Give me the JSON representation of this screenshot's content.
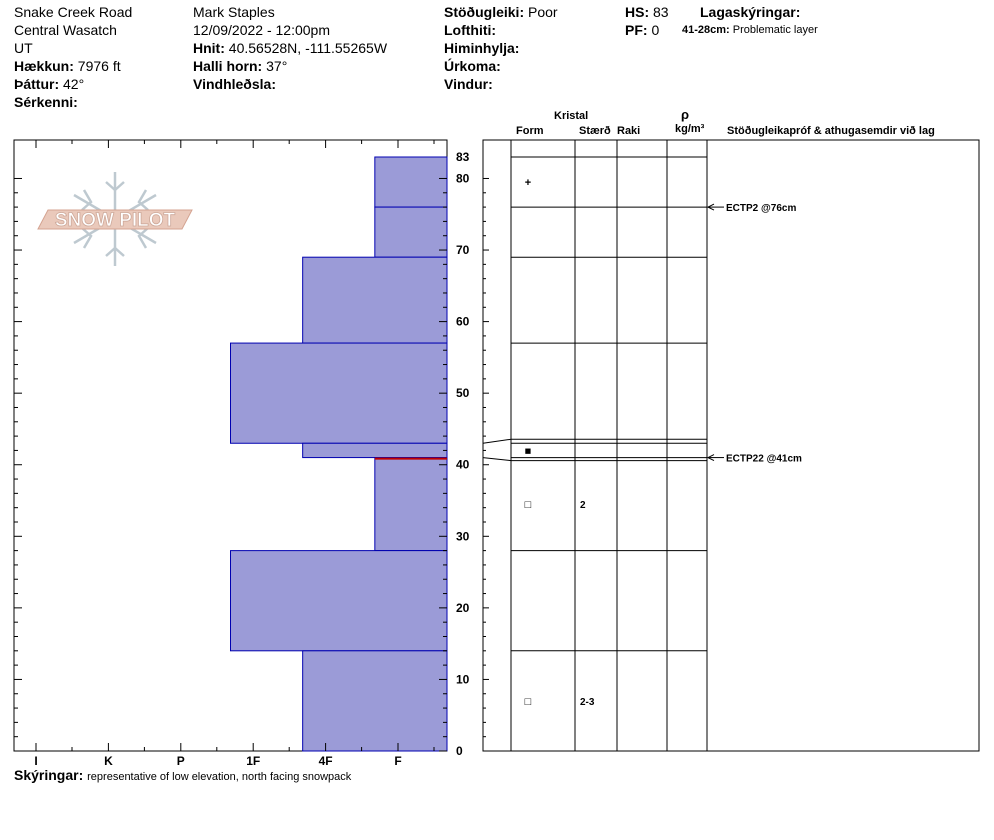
{
  "header": {
    "location": "Snake Creek Road",
    "range": "Central Wasatch",
    "state": "UT",
    "elevation_label": "Hækkun:",
    "elevation_value": "7976 ft",
    "aspect_label": "Þáttur:",
    "aspect_value": "42°",
    "features_label": "Sérkenni:",
    "observer": "Mark Staples",
    "datetime": "12/09/2022 - 12:00pm",
    "coords_label": "Hnit:",
    "coords_value": "40.56528N, -111.55265W",
    "slope_label": "Halli horn:",
    "slope_value": "37°",
    "wind_loading_label": "Vindhleðsla:",
    "stability_label": "Stöðugleiki:",
    "stability_value": "Poor",
    "air_temp_label": "Lofthiti:",
    "sky_label": "Himinhylja:",
    "precip_label": "Úrkoma:",
    "wind_label": "Vindur:",
    "hs_label": "HS:",
    "hs_value": "83",
    "pf_label": "PF:",
    "pf_value": "0",
    "layer_notes_label": "Lagaskýringar:",
    "layer_note_range": "41-28cm:",
    "layer_note_text": "Problematic layer"
  },
  "logo": {
    "text": "SNOW PILOT"
  },
  "columns": {
    "crystal": "Kristal",
    "form": "Form",
    "size": "Stærð",
    "moisture": "Raki",
    "density_symbol": "ρ",
    "density_unit": "kg/m³",
    "tests": "Stöðugleikapróf & athugasemdir við lag"
  },
  "footer": {
    "comments_label": "Skýringar:",
    "comments_text": "representative of low elevation, north facing snowpack"
  },
  "chart_data": {
    "type": "bar",
    "title": "",
    "orientation": "horizontal",
    "y_axis_label": "",
    "ylim": [
      0,
      83
    ],
    "y_ticks": [
      0,
      10,
      20,
      30,
      40,
      50,
      60,
      70,
      80,
      83
    ],
    "hardness_ticks": [
      "I",
      "K",
      "P",
      "1F",
      "4F",
      "F"
    ],
    "hardness_scale": [
      0,
      1,
      2,
      3,
      4,
      5,
      6
    ],
    "layers": [
      {
        "top": 83,
        "bottom": 76,
        "hardness": 1
      },
      {
        "top": 76,
        "bottom": 69,
        "hardness": 1
      },
      {
        "top": 69,
        "bottom": 57,
        "hardness": 2
      },
      {
        "top": 57,
        "bottom": 43,
        "hardness": 3
      },
      {
        "top": 43,
        "bottom": 41,
        "hardness": 2
      },
      {
        "top": 41,
        "bottom": 28,
        "hardness": 1
      },
      {
        "top": 28,
        "bottom": 14,
        "hardness": 3
      },
      {
        "top": 14,
        "bottom": 0,
        "hardness": 2
      }
    ],
    "weak_layer_line": 41,
    "grain_rows": [
      {
        "top": 83,
        "bottom": 76,
        "form": "+",
        "size": ""
      },
      {
        "top": 76,
        "bottom": 69,
        "form": "",
        "size": ""
      },
      {
        "top": 69,
        "bottom": 57,
        "form": "",
        "size": ""
      },
      {
        "top": 57,
        "bottom": 43,
        "form": "",
        "size": ""
      },
      {
        "top": 43,
        "bottom": 41,
        "form": "■",
        "size": ""
      },
      {
        "top": 41,
        "bottom": 28,
        "form": "□",
        "size": "2"
      },
      {
        "top": 28,
        "bottom": 14,
        "form": "",
        "size": ""
      },
      {
        "top": 14,
        "bottom": 0,
        "form": "□",
        "size": "2-3"
      }
    ],
    "tests": [
      {
        "depth": 76,
        "label": "ECTP2 @76cm"
      },
      {
        "depth": 41,
        "label": "ECTP22 @41cm"
      }
    ],
    "colors": {
      "bar": "#9b9bd7",
      "bar_edge": "#0000b0",
      "weak_line": "#c00000"
    }
  }
}
